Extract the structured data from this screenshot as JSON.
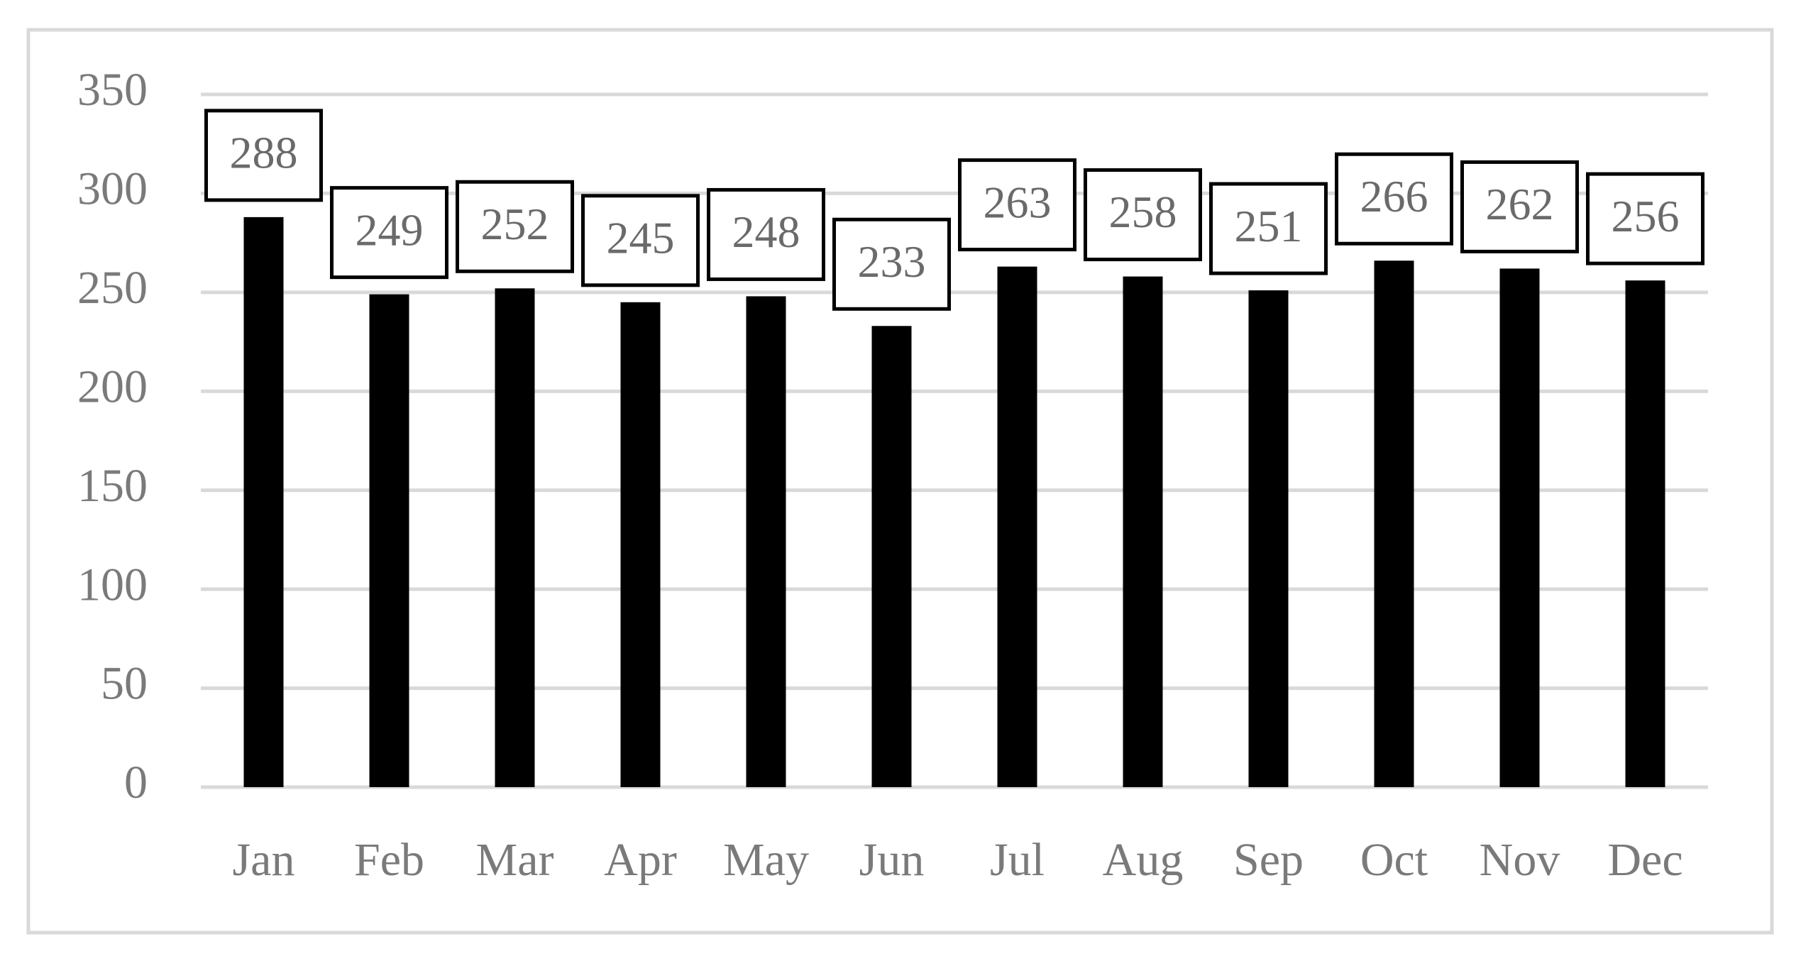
{
  "chart_data": {
    "type": "bar",
    "categories": [
      "Jan",
      "Feb",
      "Mar",
      "Apr",
      "May",
      "Jun",
      "Jul",
      "Aug",
      "Sep",
      "Oct",
      "Nov",
      "Dec"
    ],
    "values": [
      288,
      249,
      252,
      245,
      248,
      233,
      263,
      258,
      251,
      266,
      262,
      256
    ],
    "color": "#000000",
    "ylim": [
      0,
      350
    ],
    "yticks": [
      0,
      50,
      100,
      150,
      200,
      250,
      300,
      350
    ],
    "grid": true
  }
}
